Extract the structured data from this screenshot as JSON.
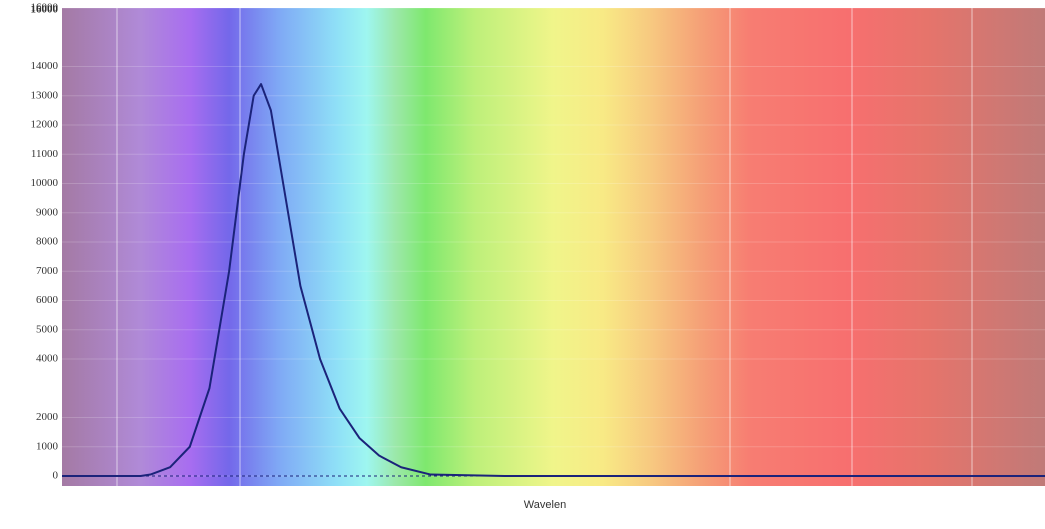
{
  "chart_data": {
    "type": "line",
    "x_label": "Wavelen",
    "x": [
      380,
      412,
      416,
      424,
      432,
      440,
      448,
      454,
      458,
      461,
      465,
      469,
      473,
      477,
      485,
      493,
      501,
      509,
      518,
      530,
      560,
      600,
      700,
      780
    ],
    "series": [
      {
        "color": "#1b237a",
        "values": [
          0,
          0,
          50,
          300,
          1000,
          3000,
          7000,
          11000,
          13000,
          13400,
          12500,
          10500,
          8500,
          6500,
          4000,
          2300,
          1300,
          700,
          300,
          50,
          0,
          0,
          0,
          0
        ]
      }
    ],
    "xlim": [
      380,
      780
    ],
    "ylim": [
      0,
      16000
    ],
    "yticks": [
      0,
      1000,
      2000,
      4000,
      5000,
      6000,
      7000,
      8000,
      9000,
      10000,
      11000,
      12000,
      13000,
      14000,
      16000
    ]
  }
}
